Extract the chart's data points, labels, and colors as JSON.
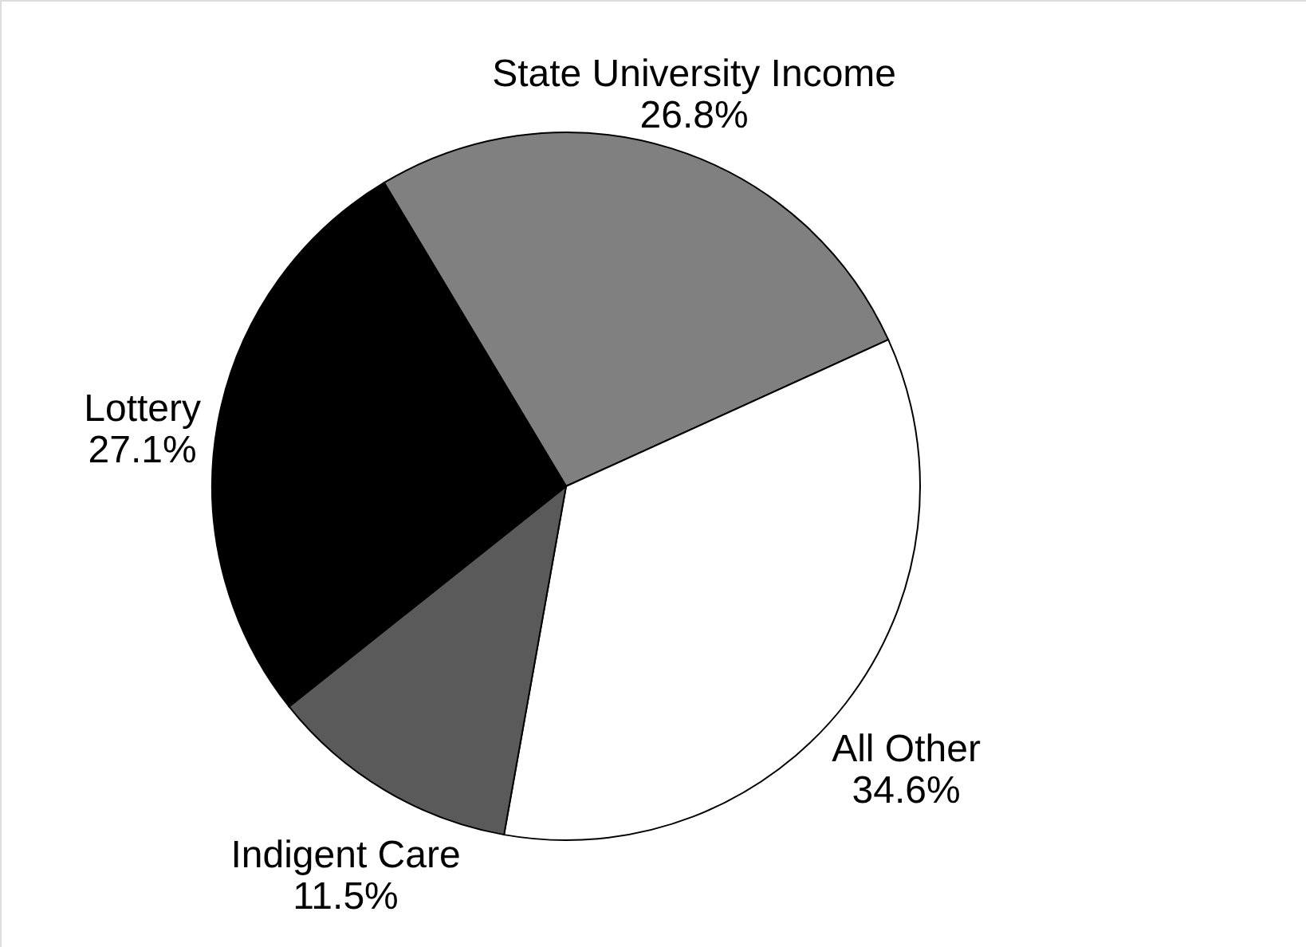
{
  "chart_data": {
    "type": "pie",
    "categories": [
      "State University Income",
      "All Other",
      "Indigent Care",
      "Lottery"
    ],
    "values": [
      26.8,
      34.6,
      11.5,
      27.1
    ],
    "colors": [
      "#808080",
      "#ffffff",
      "#5a5a5a",
      "#000000"
    ],
    "value_labels": [
      "26.8%",
      "34.6%",
      "11.5%",
      "27.1%"
    ]
  }
}
